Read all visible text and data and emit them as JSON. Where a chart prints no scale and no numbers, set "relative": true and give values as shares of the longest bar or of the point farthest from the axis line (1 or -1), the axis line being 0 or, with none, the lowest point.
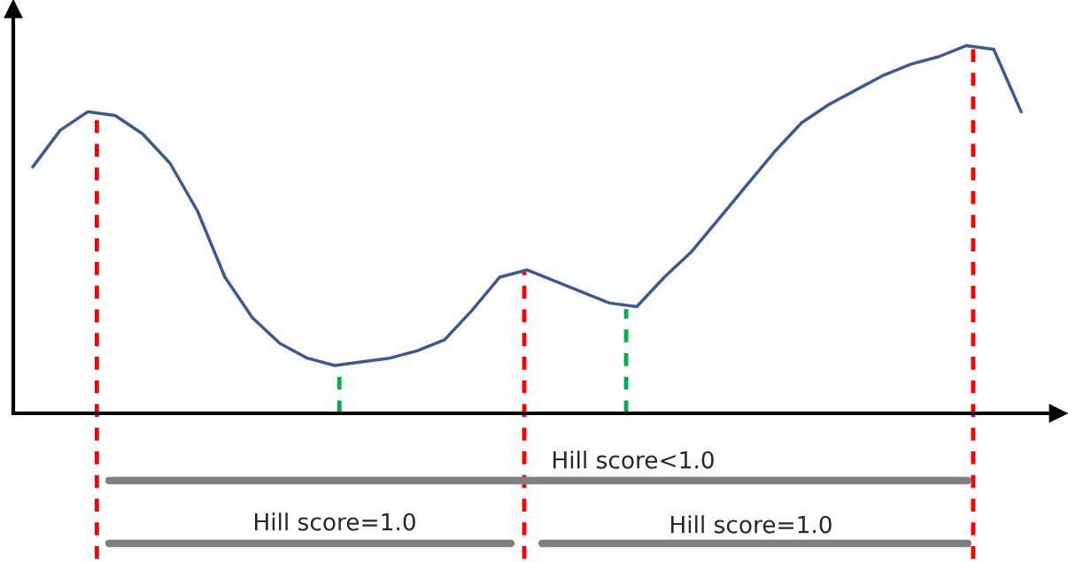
{
  "chart_data": {
    "type": "line",
    "relative": true,
    "categories": [
      null,
      null,
      null,
      null,
      null,
      null,
      null,
      null,
      null,
      null,
      null,
      null,
      null,
      null,
      null,
      null,
      null,
      null,
      null,
      null,
      null,
      null,
      null,
      null,
      null,
      null,
      null,
      null,
      null,
      null,
      null,
      null,
      null,
      null,
      null,
      null,
      null
    ],
    "series": [
      {
        "color": "#3b5998",
        "values": [
          0.67,
          0.77,
          0.82,
          0.81,
          0.76,
          0.68,
          0.55,
          0.37,
          0.26,
          0.19,
          0.15,
          0.13,
          0.14,
          0.15,
          0.17,
          0.2,
          0.28,
          0.37,
          0.39,
          0.36,
          0.33,
          0.3,
          0.29,
          0.37,
          0.44,
          0.53,
          0.62,
          0.71,
          0.79,
          0.84,
          0.88,
          0.92,
          0.95,
          0.97,
          1.0,
          0.99,
          0.82
        ]
      }
    ],
    "annotations": [
      "Hill score<1.0",
      "Hill score=1.0",
      "Hill score=1.0"
    ]
  }
}
